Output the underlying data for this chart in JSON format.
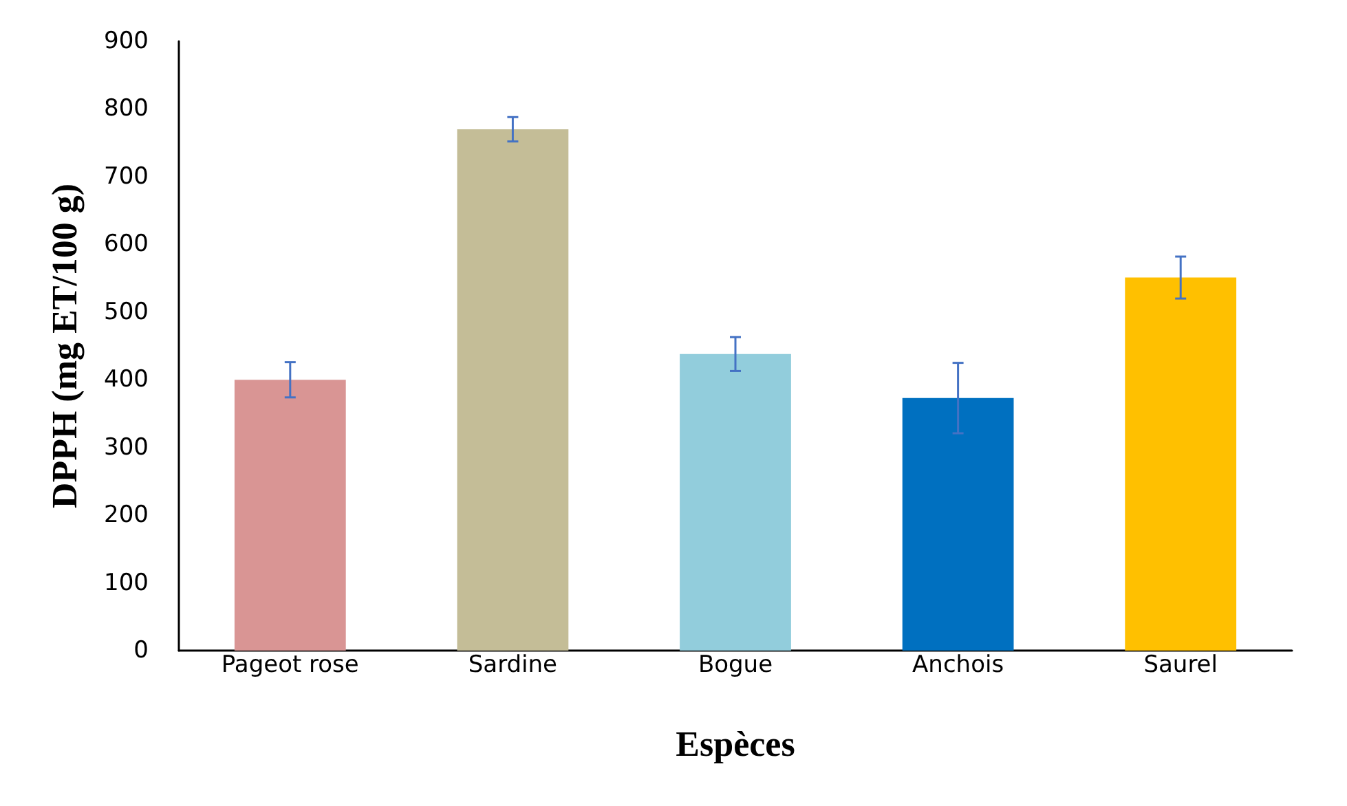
{
  "chart_data": {
    "type": "bar",
    "xlabel": "Espèces",
    "ylabel": "DPPH (mg ET/100 g)",
    "categories": [
      "Pageot rose",
      "Sardine",
      "Bogue",
      "Anchois",
      "Saurel"
    ],
    "values": [
      400,
      770,
      438,
      373,
      551
    ],
    "colors": [
      "#d99594",
      "#c4bd97",
      "#92cddc",
      "#0070c0",
      "#ffc000"
    ],
    "errors": [
      26,
      18,
      25,
      52,
      31
    ],
    "ylim": [
      0,
      900
    ],
    "yticks": [
      0,
      100,
      200,
      300,
      400,
      500,
      600,
      700,
      800,
      900
    ],
    "grid": false
  }
}
